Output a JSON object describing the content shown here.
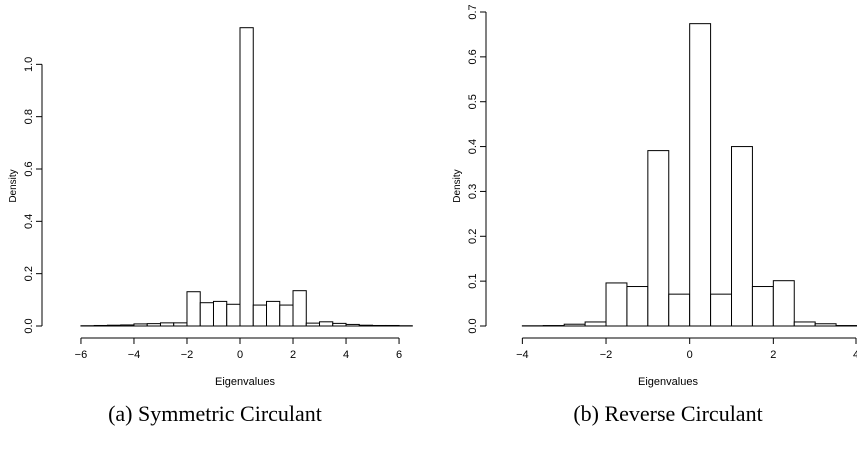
{
  "chart_data": [
    {
      "type": "bar",
      "subtype": "histogram",
      "caption": "(a) Symmetric Circulant",
      "xlabel": "Eigenvalues",
      "ylabel": "Density",
      "xlim": [
        -6.3,
        6.3
      ],
      "ylim": [
        0,
        1.2
      ],
      "xticks": [
        -6,
        -4,
        -2,
        0,
        2,
        4,
        6
      ],
      "xtick_labels": [
        "−6",
        "−4",
        "−2",
        "0",
        "2",
        "4",
        "6"
      ],
      "yticks": [
        0.0,
        0.2,
        0.4,
        0.6,
        0.8,
        1.0
      ],
      "ytick_labels": [
        "0.0",
        "0.2",
        "0.4",
        "0.6",
        "0.8",
        "1.0"
      ],
      "bin_width": 0.5,
      "bins": [
        {
          "x0": -6.0,
          "x1": -5.5,
          "density": 0.001
        },
        {
          "x0": -5.5,
          "x1": -5.0,
          "density": 0.002
        },
        {
          "x0": -5.0,
          "x1": -4.5,
          "density": 0.003
        },
        {
          "x0": -4.5,
          "x1": -4.0,
          "density": 0.004
        },
        {
          "x0": -4.0,
          "x1": -3.5,
          "density": 0.008
        },
        {
          "x0": -3.5,
          "x1": -3.0,
          "density": 0.009
        },
        {
          "x0": -3.0,
          "x1": -2.5,
          "density": 0.012
        },
        {
          "x0": -2.5,
          "x1": -2.0,
          "density": 0.012
        },
        {
          "x0": -2.0,
          "x1": -1.5,
          "density": 0.131
        },
        {
          "x0": -1.5,
          "x1": -1.0,
          "density": 0.089
        },
        {
          "x0": -1.0,
          "x1": -0.5,
          "density": 0.094
        },
        {
          "x0": -0.5,
          "x1": 0.0,
          "density": 0.083
        },
        {
          "x0": 0.0,
          "x1": 0.5,
          "density": 1.14
        },
        {
          "x0": 0.5,
          "x1": 1.0,
          "density": 0.08
        },
        {
          "x0": 1.0,
          "x1": 1.5,
          "density": 0.094
        },
        {
          "x0": 1.5,
          "x1": 2.0,
          "density": 0.08
        },
        {
          "x0": 2.0,
          "x1": 2.5,
          "density": 0.135
        },
        {
          "x0": 2.5,
          "x1": 3.0,
          "density": 0.011
        },
        {
          "x0": 3.0,
          "x1": 3.5,
          "density": 0.016
        },
        {
          "x0": 3.5,
          "x1": 4.0,
          "density": 0.01
        },
        {
          "x0": 4.0,
          "x1": 4.5,
          "density": 0.006
        },
        {
          "x0": 4.5,
          "x1": 5.0,
          "density": 0.003
        },
        {
          "x0": 5.0,
          "x1": 5.5,
          "density": 0.002
        },
        {
          "x0": 5.5,
          "x1": 6.0,
          "density": 0.002
        },
        {
          "x0": 6.0,
          "x1": 6.5,
          "density": 0.001
        }
      ]
    },
    {
      "type": "bar",
      "subtype": "histogram",
      "caption": "(b) Reverse Circulant",
      "xlabel": "Eigenvalues",
      "ylabel": "Density",
      "xlim": [
        -4.2,
        4.0
      ],
      "ylim": [
        0,
        0.7
      ],
      "xticks": [
        -4,
        -2,
        0,
        2,
        4
      ],
      "xtick_labels": [
        "−4",
        "−2",
        "0",
        "2",
        "4"
      ],
      "yticks": [
        0.0,
        0.1,
        0.2,
        0.3,
        0.4,
        0.5,
        0.6,
        0.7
      ],
      "ytick_labels": [
        "0.0",
        "0.1",
        "0.2",
        "0.3",
        "0.4",
        "0.5",
        "0.6",
        "0.7"
      ],
      "bin_width": 0.5,
      "bins": [
        {
          "x0": -4.0,
          "x1": -3.5,
          "density": 0.0005
        },
        {
          "x0": -3.5,
          "x1": -3.0,
          "density": 0.001
        },
        {
          "x0": -3.0,
          "x1": -2.5,
          "density": 0.004
        },
        {
          "x0": -2.5,
          "x1": -2.0,
          "density": 0.009
        },
        {
          "x0": -2.0,
          "x1": -1.5,
          "density": 0.096
        },
        {
          "x0": -1.5,
          "x1": -1.0,
          "density": 0.088
        },
        {
          "x0": -1.0,
          "x1": -0.5,
          "density": 0.391
        },
        {
          "x0": -0.5,
          "x1": 0.0,
          "density": 0.071
        },
        {
          "x0": 0.0,
          "x1": 0.5,
          "density": 0.674
        },
        {
          "x0": 0.5,
          "x1": 1.0,
          "density": 0.071
        },
        {
          "x0": 1.0,
          "x1": 1.5,
          "density": 0.4
        },
        {
          "x0": 1.5,
          "x1": 2.0,
          "density": 0.088
        },
        {
          "x0": 2.0,
          "x1": 2.5,
          "density": 0.101
        },
        {
          "x0": 2.5,
          "x1": 3.0,
          "density": 0.009
        },
        {
          "x0": 3.0,
          "x1": 3.5,
          "density": 0.005
        },
        {
          "x0": 3.5,
          "x1": 4.0,
          "density": 0.001
        }
      ]
    }
  ]
}
